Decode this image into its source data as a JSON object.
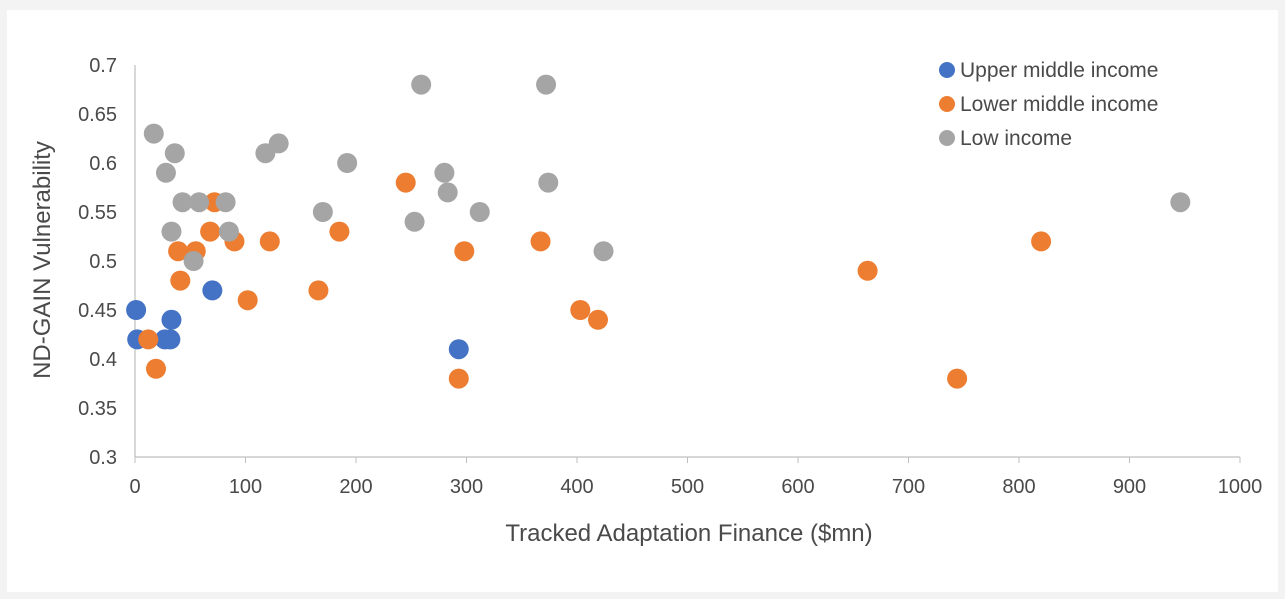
{
  "chart_data": {
    "type": "scatter",
    "title": "",
    "xlabel": "Tracked Adaptation Finance ($mn)",
    "ylabel": "ND-GAIN Vulnerability",
    "xlim": [
      0,
      1000
    ],
    "ylim": [
      0.3,
      0.7
    ],
    "x_ticks": [
      "0",
      "100",
      "200",
      "300",
      "400",
      "500",
      "600",
      "700",
      "800",
      "900",
      "1000"
    ],
    "y_ticks": [
      "0.3",
      "0.35",
      "0.4",
      "0.45",
      "0.5",
      "0.55",
      "0.6",
      "0.65",
      "0.7"
    ],
    "grid": false,
    "legend_position": "top-right",
    "series": [
      {
        "name": "Upper middle income",
        "color": "#4472c4",
        "points": [
          [
            1,
            0.45
          ],
          [
            2,
            0.42
          ],
          [
            27,
            0.42
          ],
          [
            32,
            0.42
          ],
          [
            33,
            0.44
          ],
          [
            70,
            0.47
          ],
          [
            293,
            0.41
          ]
        ]
      },
      {
        "name": "Lower middle income",
        "color": "#ed7d31",
        "points": [
          [
            12,
            0.42
          ],
          [
            19,
            0.39
          ],
          [
            39,
            0.51
          ],
          [
            41,
            0.48
          ],
          [
            55,
            0.51
          ],
          [
            68,
            0.53
          ],
          [
            72,
            0.56
          ],
          [
            90,
            0.52
          ],
          [
            102,
            0.46
          ],
          [
            122,
            0.52
          ],
          [
            166,
            0.47
          ],
          [
            185,
            0.53
          ],
          [
            245,
            0.58
          ],
          [
            293,
            0.38
          ],
          [
            298,
            0.51
          ],
          [
            367,
            0.52
          ],
          [
            403,
            0.45
          ],
          [
            419,
            0.44
          ],
          [
            663,
            0.49
          ],
          [
            744,
            0.38
          ],
          [
            820,
            0.52
          ]
        ]
      },
      {
        "name": "Low income",
        "color": "#a5a5a5",
        "points": [
          [
            17,
            0.63
          ],
          [
            28,
            0.59
          ],
          [
            33,
            0.53
          ],
          [
            36,
            0.61
          ],
          [
            43,
            0.56
          ],
          [
            53,
            0.5
          ],
          [
            58,
            0.56
          ],
          [
            82,
            0.56
          ],
          [
            85,
            0.53
          ],
          [
            118,
            0.61
          ],
          [
            130,
            0.62
          ],
          [
            170,
            0.55
          ],
          [
            192,
            0.6
          ],
          [
            253,
            0.54
          ],
          [
            259,
            0.68
          ],
          [
            280,
            0.59
          ],
          [
            283,
            0.57
          ],
          [
            312,
            0.55
          ],
          [
            372,
            0.68
          ],
          [
            374,
            0.58
          ],
          [
            424,
            0.51
          ],
          [
            946,
            0.56
          ]
        ]
      }
    ]
  }
}
